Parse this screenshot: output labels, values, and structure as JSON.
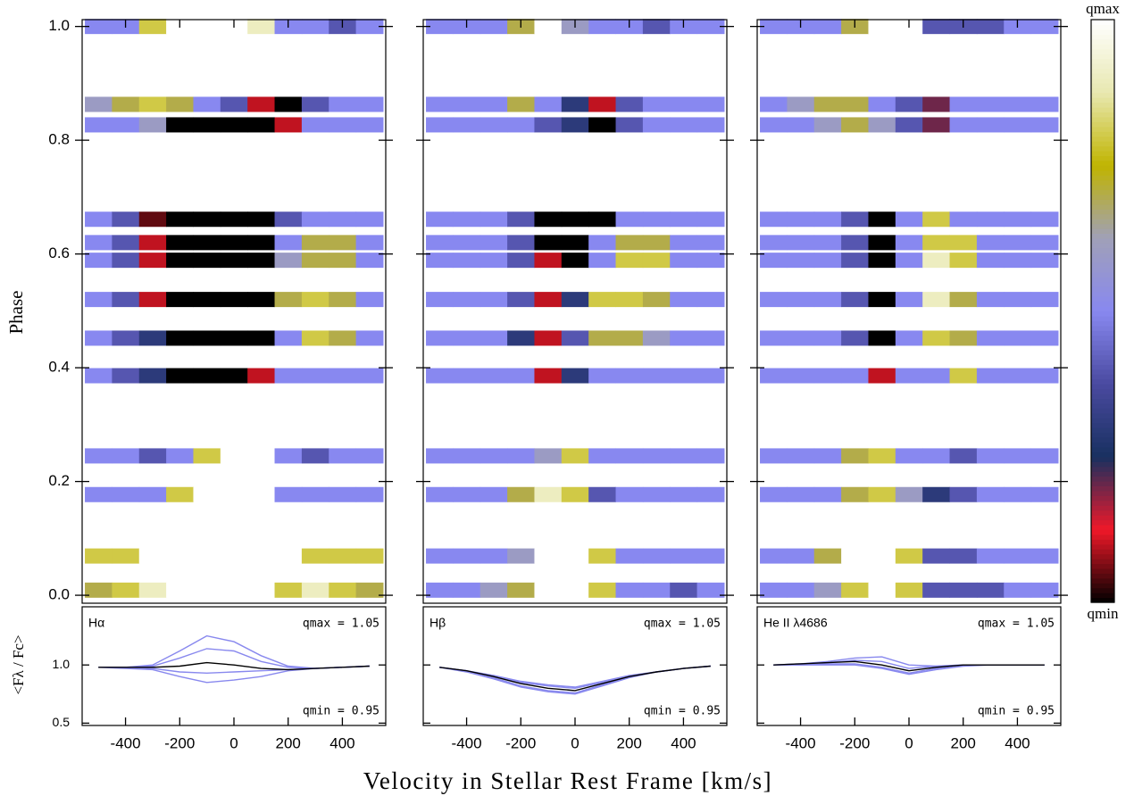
{
  "chart_data": {
    "type": "heatmap",
    "xlabel": "Velocity in Stellar Rest Frame [km/s]",
    "ylabel": "Phase",
    "profile_ylabel": "<Fλ / Fc>",
    "colorbar_top": "qmax",
    "colorbar_bottom": "qmin",
    "colormap": [
      "#000000",
      "#f01828",
      "#183060",
      "#4a4aa0",
      "#8888f0",
      "#a0a0b8",
      "#c0b400",
      "#e8e8b0",
      "#ffffff"
    ],
    "xlim": [
      -560,
      560
    ],
    "xticks": [
      -400,
      -200,
      0,
      200,
      400
    ],
    "ylim": [
      -0.014,
      1.012
    ],
    "yticks": [
      {
        "value": 0,
        "label": "0.0"
      },
      0.2,
      0.4,
      0.6,
      0.8,
      {
        "value": 1,
        "label": "1.0"
      }
    ],
    "profile_ylim": [
      0.48,
      1.5
    ],
    "profile_yticks": [
      0.5,
      {
        "value": 1,
        "label": "1.0"
      }
    ],
    "velocity": [
      -500,
      -400,
      -300,
      -200,
      -100,
      0,
      100,
      200,
      300,
      400,
      500
    ],
    "phases": [
      1.0,
      0.863,
      0.827,
      0.661,
      0.62,
      0.589,
      0.52,
      0.452,
      0.386,
      0.245,
      0.177,
      0.069,
      0.009
    ],
    "panels": [
      {
        "label": "Hα",
        "qmax": {
          "value": 1.05,
          "label": "qmax = 1.05"
        },
        "qmin": {
          "value": 0.95,
          "label": "qmin = 0.95"
        },
        "strips": [
          [
            1.0,
            1.0,
            1.03,
            1.06,
            1.06,
            1.06,
            1.04,
            1.0,
            1.0,
            0.99,
            1.0
          ],
          [
            1.01,
            1.02,
            1.03,
            1.02,
            1.0,
            0.99,
            0.96,
            0.95,
            0.99,
            1.0,
            1.0
          ],
          [
            1.0,
            1.0,
            1.01,
            0.95,
            0.94,
            0.94,
            0.94,
            0.96,
            1.0,
            1.0,
            1.0
          ],
          [
            1.0,
            0.99,
            0.955,
            0.94,
            0.94,
            0.94,
            0.94,
            0.99,
            1.0,
            1.0,
            1.0
          ],
          [
            1.0,
            0.99,
            0.96,
            0.94,
            0.94,
            0.94,
            0.95,
            1.0,
            1.02,
            1.02,
            1.0
          ],
          [
            1.0,
            0.99,
            0.96,
            0.94,
            0.94,
            0.94,
            0.95,
            1.01,
            1.02,
            1.02,
            1.0
          ],
          [
            1.0,
            0.99,
            0.96,
            0.94,
            0.94,
            0.94,
            0.95,
            1.02,
            1.03,
            1.02,
            1.0
          ],
          [
            1.0,
            0.99,
            0.98,
            0.94,
            0.94,
            0.94,
            0.95,
            1.0,
            1.03,
            1.02,
            1.0
          ],
          [
            1.0,
            0.99,
            0.98,
            0.94,
            0.94,
            0.94,
            0.96,
            1.0,
            1.0,
            1.0,
            1.0
          ],
          [
            1.0,
            1.0,
            0.99,
            1.0,
            1.03,
            1.06,
            1.05,
            1.0,
            0.99,
            1.0,
            1.0
          ],
          [
            1.0,
            1.0,
            1.0,
            1.03,
            1.06,
            1.06,
            1.06,
            1.0,
            1.0,
            1.0,
            1.0
          ],
          [
            1.03,
            1.03,
            1.06,
            1.06,
            1.06,
            1.06,
            1.06,
            1.06,
            1.03,
            1.03,
            1.03
          ],
          [
            1.02,
            1.03,
            1.04,
            1.06,
            1.06,
            1.06,
            1.06,
            1.03,
            1.04,
            1.03,
            1.02
          ]
        ],
        "profiles": [
          [
            0.98,
            0.98,
            1.0,
            1.12,
            1.25,
            1.2,
            1.08,
            0.99,
            0.97,
            0.98,
            0.99
          ],
          [
            0.98,
            0.98,
            0.99,
            1.06,
            1.14,
            1.12,
            1.03,
            0.98,
            0.97,
            0.98,
            0.99
          ],
          [
            0.98,
            0.98,
            0.97,
            0.94,
            0.93,
            0.94,
            0.95,
            0.96,
            0.97,
            0.98,
            0.99
          ],
          [
            0.98,
            0.97,
            0.96,
            0.9,
            0.85,
            0.87,
            0.9,
            0.95,
            0.97,
            0.98,
            0.99
          ]
        ],
        "profile_color": "#8888ee",
        "mean": [
          0.98,
          0.98,
          0.98,
          0.99,
          1.02,
          1.0,
          0.97,
          0.96,
          0.97,
          0.98,
          0.99
        ],
        "mean_color": "#000000"
      },
      {
        "label": "Hβ",
        "qmax": {
          "value": 1.05,
          "label": "qmax = 1.05"
        },
        "qmin": {
          "value": 0.95,
          "label": "qmin = 0.95"
        },
        "strips": [
          [
            1.0,
            1.0,
            1.0,
            1.02,
            1.05,
            1.01,
            1.0,
            1.0,
            0.99,
            1.0,
            1.0
          ],
          [
            1.0,
            1.0,
            1.0,
            1.02,
            1.0,
            0.98,
            0.96,
            0.99,
            1.0,
            1.0,
            1.0
          ],
          [
            1.0,
            1.0,
            1.0,
            1.0,
            0.99,
            0.98,
            0.95,
            0.99,
            1.0,
            1.0,
            1.0
          ],
          [
            1.0,
            1.0,
            1.0,
            0.99,
            0.95,
            0.94,
            0.95,
            1.0,
            1.0,
            1.0,
            1.0
          ],
          [
            1.0,
            1.0,
            1.0,
            0.99,
            0.95,
            0.95,
            1.0,
            1.02,
            1.02,
            1.0,
            1.0
          ],
          [
            1.0,
            1.0,
            1.0,
            0.99,
            0.96,
            0.95,
            1.0,
            1.03,
            1.03,
            1.0,
            1.0
          ],
          [
            1.0,
            1.0,
            1.0,
            0.99,
            0.96,
            0.98,
            1.03,
            1.03,
            1.02,
            1.0,
            1.0
          ],
          [
            1.0,
            1.0,
            1.0,
            0.98,
            0.96,
            0.99,
            1.02,
            1.02,
            1.01,
            1.0,
            1.0
          ],
          [
            1.0,
            1.0,
            1.0,
            1.0,
            0.96,
            0.98,
            1.0,
            1.0,
            1.0,
            1.0,
            1.0
          ],
          [
            1.0,
            1.0,
            1.0,
            1.0,
            1.01,
            1.03,
            1.0,
            1.0,
            1.0,
            1.0,
            1.0
          ],
          [
            1.0,
            1.0,
            1.0,
            1.02,
            1.04,
            1.03,
            0.99,
            1.0,
            1.0,
            1.0,
            1.0
          ],
          [
            1.0,
            1.0,
            1.0,
            1.01,
            1.05,
            1.06,
            1.03,
            1.0,
            1.0,
            1.0,
            1.0
          ],
          [
            1.0,
            1.0,
            1.01,
            1.02,
            1.05,
            1.06,
            1.03,
            1.0,
            1.0,
            0.99,
            1.0
          ]
        ],
        "profiles": [
          [
            0.98,
            0.95,
            0.91,
            0.86,
            0.83,
            0.81,
            0.86,
            0.91,
            0.94,
            0.97,
            0.99
          ],
          [
            0.98,
            0.95,
            0.9,
            0.85,
            0.82,
            0.8,
            0.85,
            0.9,
            0.94,
            0.97,
            0.99
          ],
          [
            0.98,
            0.95,
            0.89,
            0.82,
            0.78,
            0.76,
            0.83,
            0.9,
            0.94,
            0.97,
            0.99
          ],
          [
            0.98,
            0.94,
            0.88,
            0.81,
            0.77,
            0.75,
            0.82,
            0.89,
            0.94,
            0.97,
            0.99
          ]
        ],
        "profile_color": "#8888ee",
        "mean": [
          0.98,
          0.95,
          0.9,
          0.84,
          0.8,
          0.78,
          0.84,
          0.9,
          0.94,
          0.97,
          0.99
        ],
        "mean_color": "#000000"
      },
      {
        "label": "He II λ4686",
        "qmax": {
          "value": 1.05,
          "label": "qmax = 1.05"
        },
        "qmin": {
          "value": 0.95,
          "label": "qmin = 0.95"
        },
        "strips": [
          [
            1.0,
            1.0,
            1.0,
            1.02,
            1.06,
            1.06,
            0.99,
            0.99,
            0.99,
            1.0,
            1.0
          ],
          [
            1.0,
            1.01,
            1.02,
            1.02,
            1.0,
            0.99,
            0.97,
            1.0,
            1.0,
            1.0,
            1.0
          ],
          [
            1.0,
            1.0,
            1.01,
            1.02,
            1.01,
            0.99,
            0.97,
            1.0,
            1.0,
            1.0,
            1.0
          ],
          [
            1.0,
            1.0,
            1.0,
            0.99,
            0.95,
            1.0,
            1.03,
            1.0,
            1.0,
            1.0,
            1.0
          ],
          [
            1.0,
            1.0,
            1.0,
            0.99,
            0.95,
            1.0,
            1.03,
            1.03,
            1.0,
            1.0,
            1.0
          ],
          [
            1.0,
            1.0,
            1.0,
            0.99,
            0.95,
            1.0,
            1.04,
            1.03,
            1.0,
            1.0,
            1.0
          ],
          [
            1.0,
            1.0,
            1.0,
            0.99,
            0.95,
            1.0,
            1.04,
            1.02,
            1.0,
            1.0,
            1.0
          ],
          [
            1.0,
            1.0,
            1.0,
            0.99,
            0.95,
            1.0,
            1.03,
            1.02,
            1.0,
            1.0,
            1.0
          ],
          [
            1.0,
            1.0,
            1.0,
            1.0,
            0.96,
            1.0,
            1.0,
            1.03,
            1.0,
            1.0,
            1.0
          ],
          [
            1.0,
            1.0,
            1.0,
            1.02,
            1.03,
            1.0,
            1.0,
            0.99,
            1.0,
            1.0,
            1.0
          ],
          [
            1.0,
            1.0,
            1.0,
            1.02,
            1.03,
            1.01,
            0.98,
            0.99,
            1.0,
            1.0,
            1.0
          ],
          [
            1.0,
            1.0,
            1.02,
            1.05,
            1.06,
            1.03,
            0.99,
            0.99,
            1.0,
            1.0,
            1.0
          ],
          [
            1.0,
            1.0,
            1.01,
            1.03,
            1.06,
            1.03,
            0.99,
            0.99,
            0.99,
            1.0,
            1.0
          ]
        ],
        "profiles": [
          [
            1.0,
            1.01,
            1.03,
            1.06,
            1.07,
            1.0,
            0.99,
            1.0,
            1.0,
            1.0,
            1.0
          ],
          [
            1.0,
            1.01,
            1.02,
            1.04,
            1.03,
            0.97,
            0.99,
            1.0,
            1.0,
            1.0,
            1.0
          ],
          [
            1.0,
            1.0,
            1.01,
            1.01,
            0.98,
            0.93,
            0.97,
            1.0,
            1.0,
            1.0,
            1.0
          ],
          [
            1.0,
            1.0,
            1.0,
            1.0,
            0.97,
            0.92,
            0.96,
            0.99,
            1.0,
            1.0,
            1.0
          ]
        ],
        "profile_color": "#8888ee",
        "mean": [
          1.0,
          1.01,
          1.02,
          1.03,
          1.0,
          0.95,
          0.98,
          1.0,
          1.0,
          1.0,
          1.0
        ],
        "mean_color": "#000000"
      }
    ]
  }
}
